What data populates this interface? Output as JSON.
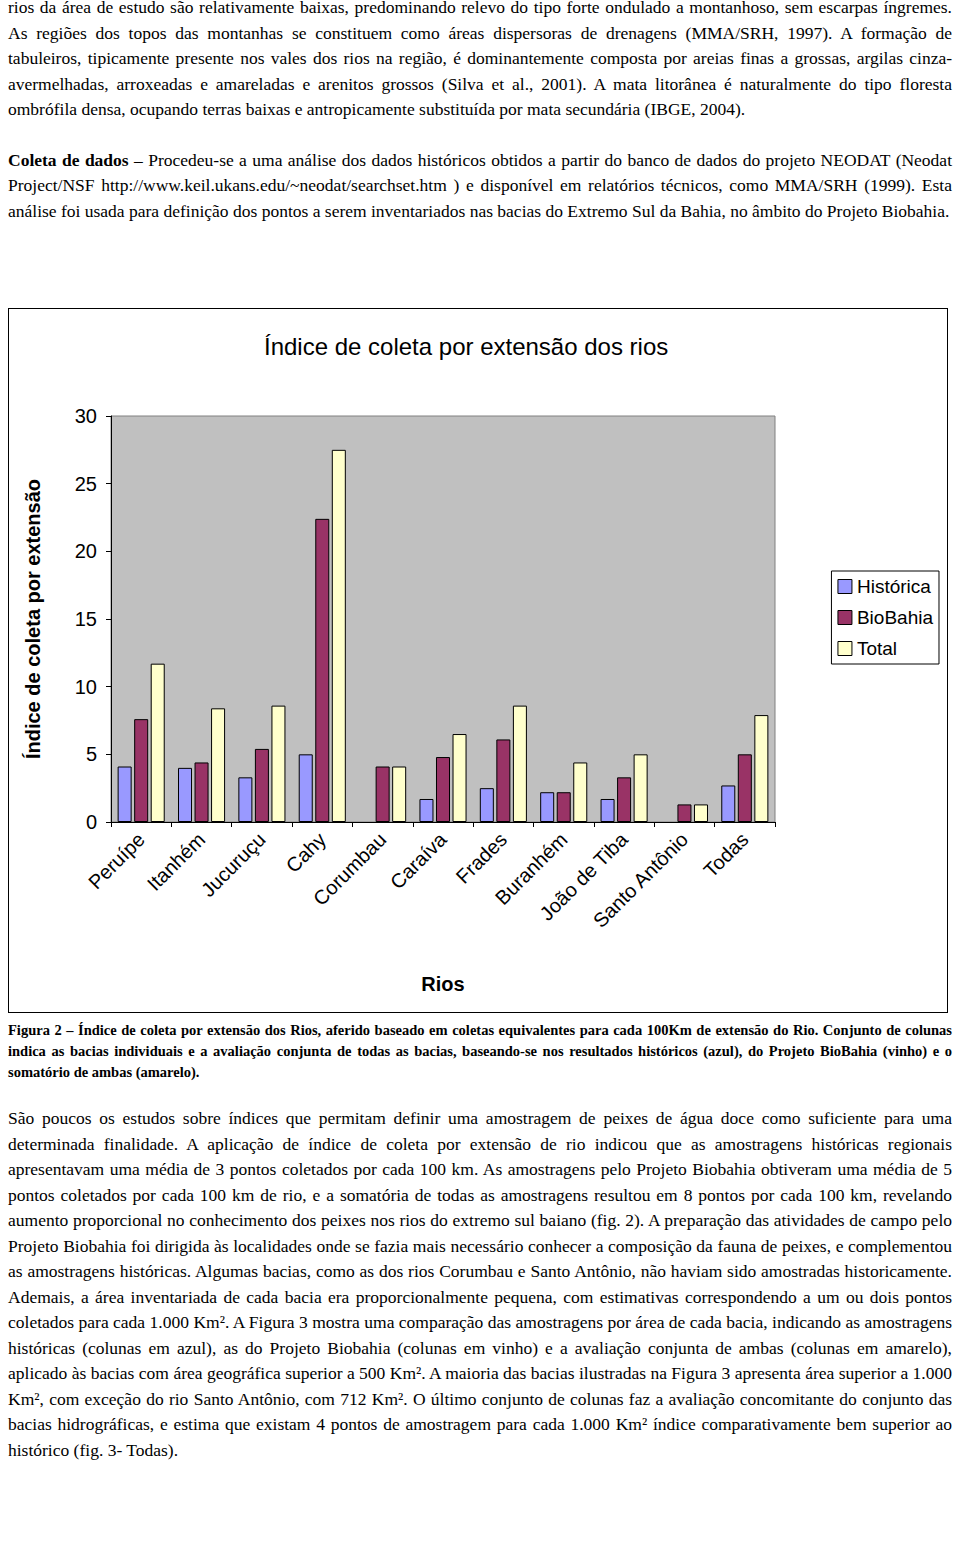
{
  "text_top": [
    {
      "text": "rios da área de estudo são relativamente baixas, predominando relevo do tipo forte ondulado a montanhoso, sem escarpas íngremes. As regiões dos topos das montanhas se constituem como áreas dispersoras de drenagens (MMA/SRH, 1997). A formação de tabuleiros, tipicamente presente nos vales dos rios na região, é dominantemente composta por areias finas a grossas, argilas cinza-avermelhadas, arroxeadas e amareladas e arenitos grossos (Silva et al., 2001). A mata litorânea é naturalmente do tipo floresta ombrófila densa, ocupando terras baixas e antropicamente substituída por mata secundária (IBGE, 2004)."
    },
    {
      "lead": "Coleta de dados",
      "text": "– Procedeu-se a uma análise dos dados históricos obtidos a partir do banco de dados do projeto NEODAT (Neodat Project/NSF http://www.keil.ukans.edu/~neodat/searchset.htm ) e disponível em relatórios técnicos, como MMA/SRH (1999). Esta análise foi usada para definição dos pontos a serem inventariados nas bacias do Extremo Sul da Bahia, no âmbito do Projeto Biobahia."
    }
  ],
  "chart_data": {
    "type": "bar",
    "title": "Índice de coleta por extensão dos rios",
    "x_label": "Rios",
    "y_label": "Índice de coleta por extensão",
    "categories": [
      "Peruípe",
      "Itanhém",
      "Jucuruçu",
      "Cahy",
      "Corumbau",
      "Caraíva",
      "Frades",
      "Buranhém",
      "João de Tiba",
      "Santo Antônio",
      "Todas"
    ],
    "series": [
      {
        "name": "Histórica",
        "color": "#9999FF",
        "values": [
          4.1,
          4.0,
          3.3,
          5.0,
          null,
          1.7,
          2.5,
          2.2,
          1.7,
          null,
          2.7
        ]
      },
      {
        "name": "BioBahia",
        "color": "#993366",
        "values": [
          7.6,
          4.4,
          5.4,
          22.4,
          4.1,
          4.8,
          6.1,
          2.2,
          3.3,
          1.3,
          5.0
        ]
      },
      {
        "name": "Total",
        "color": "#FFFFCC",
        "values": [
          11.7,
          8.4,
          8.6,
          27.5,
          4.1,
          6.5,
          8.6,
          4.4,
          5.0,
          1.3,
          7.9
        ]
      }
    ],
    "ylim": [
      0,
      30
    ],
    "yticks": [
      0,
      5,
      10,
      15,
      20,
      25,
      30
    ],
    "grid": false,
    "legend": "right"
  },
  "caption": "Figura 2 – Índice de coleta por extensão dos Rios, aferido baseado em coletas equivalentes para cada 100Km de extensão do Rio. Conjunto de colunas indica as bacias individuais e a avaliação conjunta de todas as bacias, baseando-se nos resultados históricos (azul), do Projeto BioBahia (vinho) e o somatório de ambas (amarelo).",
  "text_bottom": [
    {
      "text": "São poucos os estudos sobre índices que permitam definir uma amostragem de peixes de água doce como suficiente para uma determinada finalidade. A aplicação de índice de coleta por extensão de rio indicou que as amostragens históricas regionais apresentavam uma média de 3 pontos coletados por cada 100 km. As amostragens pelo Projeto Biobahia obtiveram uma média de 5 pontos coletados por cada 100 km de rio, e a somatória de todas as amostragens resultou em 8 pontos por cada 100 km, revelando aumento proporcional no conhecimento dos peixes nos rios do extremo sul baiano (fig. 2). A preparação das atividades de campo pelo Projeto Biobahia foi dirigida às localidades onde se fazia mais necessário conhecer a composição da fauna de peixes, e complementou as amostragens históricas. Algumas bacias, como as dos rios Corumbau e Santo Antônio, não haviam sido amostradas historicamente. Ademais, a área inventariada de cada bacia era proporcionalmente pequena, com estimativas correspondendo a um ou dois pontos coletados para cada 1.000 Km². A Figura 3 mostra uma comparação das amostragens por área de cada bacia, indicando as amostragens históricas (colunas em azul), as do Projeto Biobahia (colunas em vinho) e a avaliação conjunta de ambas (colunas em amarelo), aplicado às bacias com área geográfica superior a 500 Km². A maioria das bacias ilustradas na Figura 3 apresenta área superior a 1.000 Km², com exceção do rio Santo Antônio, com 712 Km². O último conjunto de colunas faz a avaliação concomitante do conjunto das bacias hidrográficas, e estima que existam 4 pontos de amostragem para cada 1.000 Km² índice comparativamente bem superior ao histórico (fig. 3- Todas)."
    }
  ]
}
